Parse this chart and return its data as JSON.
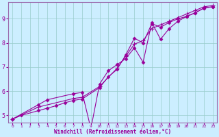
{
  "title": "",
  "xlabel": "Windchill (Refroidissement éolien,°C)",
  "ylabel": "",
  "bg_color": "#cceeff",
  "grid_color": "#99cccc",
  "line_color": "#990099",
  "spine_color": "#9966aa",
  "xlim": [
    -0.5,
    23.5
  ],
  "ylim": [
    4.7,
    9.7
  ],
  "yticks": [
    5,
    6,
    7,
    8,
    9
  ],
  "xticks": [
    0,
    1,
    2,
    3,
    4,
    5,
    6,
    7,
    8,
    9,
    10,
    11,
    12,
    13,
    14,
    15,
    16,
    17,
    18,
    19,
    20,
    21,
    22,
    23
  ],
  "series1_x": [
    0,
    1,
    3,
    4,
    5,
    6,
    7,
    8,
    10,
    11,
    12,
    13,
    14,
    15,
    16,
    17,
    18,
    19,
    20,
    21,
    22,
    23
  ],
  "series1_y": [
    4.85,
    5.0,
    5.2,
    5.3,
    5.4,
    5.52,
    5.62,
    5.68,
    6.15,
    6.6,
    6.9,
    7.5,
    8.2,
    8.0,
    8.8,
    8.65,
    8.85,
    9.0,
    9.1,
    9.25,
    9.45,
    9.5
  ],
  "series2_x": [
    0,
    3,
    4,
    7,
    8,
    9,
    10,
    11,
    12,
    13,
    14,
    15,
    16,
    17,
    18,
    19,
    20,
    21,
    22,
    23
  ],
  "series2_y": [
    4.85,
    5.45,
    5.65,
    5.9,
    5.95,
    4.45,
    6.3,
    6.85,
    7.1,
    7.35,
    7.8,
    7.2,
    8.85,
    8.15,
    8.6,
    8.9,
    9.1,
    9.25,
    9.45,
    9.5
  ],
  "series3_x": [
    0,
    3,
    7,
    8,
    10,
    12,
    13,
    14,
    15,
    16,
    17,
    18,
    19,
    20,
    21,
    22,
    23
  ],
  "series3_y": [
    4.85,
    5.35,
    5.7,
    5.75,
    6.2,
    6.95,
    7.45,
    7.95,
    8.1,
    8.6,
    8.75,
    8.9,
    9.05,
    9.2,
    9.35,
    9.5,
    9.55
  ]
}
